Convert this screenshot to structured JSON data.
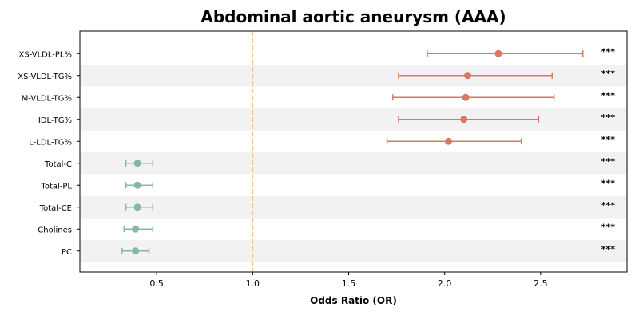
{
  "chart_data": {
    "type": "forest",
    "title": "Abdominal aortic aneurysm (AAA)",
    "xlabel": "Odds Ratio (OR)",
    "xlim": [
      0.1,
      2.95
    ],
    "xticks": [
      0.5,
      1.0,
      1.5,
      2.0,
      2.5
    ],
    "xtick_labels": [
      "0.5",
      "1.0",
      "1.5",
      "2.0",
      "2.5"
    ],
    "reference_line": 1.0,
    "reference_color": "#f2c48a",
    "colors": {
      "increased": "#d97a5c",
      "decreased": "#86b8a0",
      "band": "#f2f2f2"
    },
    "rows": [
      {
        "label": "XS-VLDL-PL%",
        "or": 2.28,
        "lo": 1.91,
        "hi": 2.72,
        "sig": "***"
      },
      {
        "label": "XS-VLDL-TG%",
        "or": 2.12,
        "lo": 1.76,
        "hi": 2.56,
        "sig": "***"
      },
      {
        "label": "M-VLDL-TG%",
        "or": 2.11,
        "lo": 1.73,
        "hi": 2.57,
        "sig": "***"
      },
      {
        "label": "IDL-TG%",
        "or": 2.1,
        "lo": 1.76,
        "hi": 2.49,
        "sig": "***"
      },
      {
        "label": "L-LDL-TG%",
        "or": 2.02,
        "lo": 1.7,
        "hi": 2.4,
        "sig": "***"
      },
      {
        "label": "Total-C",
        "or": 0.4,
        "lo": 0.34,
        "hi": 0.48,
        "sig": "***"
      },
      {
        "label": "Total-PL",
        "or": 0.4,
        "lo": 0.34,
        "hi": 0.48,
        "sig": "***"
      },
      {
        "label": "Total-CE",
        "or": 0.4,
        "lo": 0.34,
        "hi": 0.48,
        "sig": "***"
      },
      {
        "label": "Cholines",
        "or": 0.39,
        "lo": 0.33,
        "hi": 0.48,
        "sig": "***"
      },
      {
        "label": "PC",
        "or": 0.39,
        "lo": 0.32,
        "hi": 0.46,
        "sig": "***"
      }
    ]
  }
}
